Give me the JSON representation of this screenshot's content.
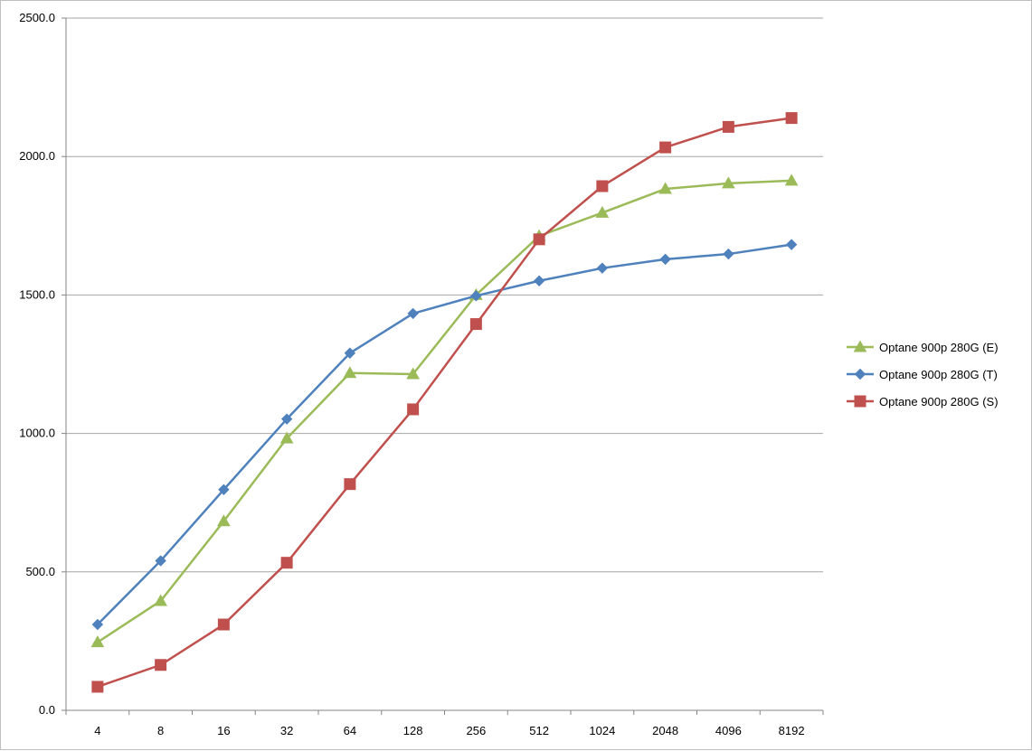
{
  "chart_data": {
    "type": "line",
    "title": "",
    "xlabel": "",
    "ylabel": "",
    "categories": [
      "4",
      "8",
      "16",
      "32",
      "64",
      "128",
      "256",
      "512",
      "1024",
      "2048",
      "4096",
      "8192"
    ],
    "ylim": [
      0,
      2500
    ],
    "y_ticks": [
      "0.0",
      "500.0",
      "1000.0",
      "1500.0",
      "2000.0",
      "2500.0"
    ],
    "grid": "horizontal",
    "legend_position": "right",
    "series": [
      {
        "name": "Optane 900p 280G (E)",
        "color": "#9bbb59",
        "marker": "triangle",
        "values": [
          246,
          395,
          683,
          982,
          1218,
          1214,
          1500,
          1713,
          1797,
          1883,
          1903,
          1913
        ]
      },
      {
        "name": "Optane 900p 280G (T)",
        "color": "#4f81bd",
        "marker": "diamond",
        "values": [
          310,
          540,
          797,
          1052,
          1290,
          1433,
          1497,
          1551,
          1597,
          1629,
          1648,
          1682
        ]
      },
      {
        "name": "Optane 900p 280G (S)",
        "color": "#c0504d",
        "marker": "square",
        "values": [
          85,
          164,
          310,
          533,
          817,
          1087,
          1395,
          1701,
          1893,
          2033,
          2107,
          2139
        ]
      }
    ],
    "legend_order": [
      0,
      1,
      2
    ]
  }
}
